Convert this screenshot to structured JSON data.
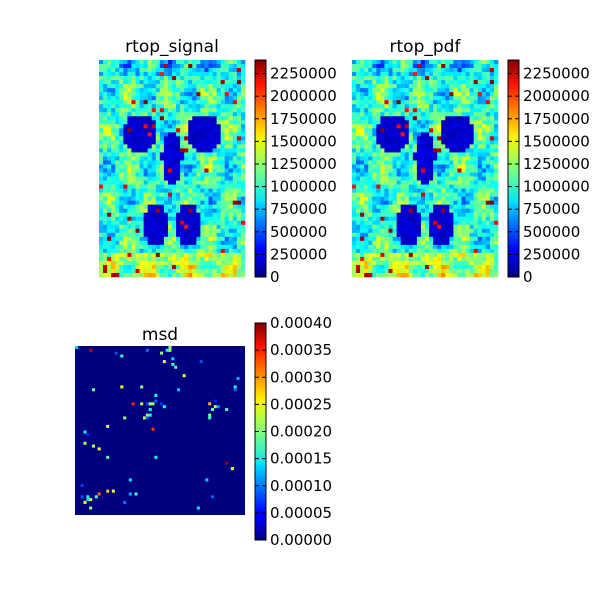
{
  "chart_data": [
    {
      "type": "heatmap",
      "title": "rtop_signal",
      "colormap": "jet",
      "colorbar": {
        "range": [
          0,
          2400000
        ],
        "ticks": [
          0,
          250000,
          500000,
          750000,
          1000000,
          1250000,
          1500000,
          1750000,
          2000000,
          2250000
        ],
        "tick_labels": [
          "0",
          "250000",
          "500000",
          "750000",
          "1000000",
          "1250000",
          "1500000",
          "1750000",
          "2000000",
          "2250000"
        ]
      },
      "axes_visible": false
    },
    {
      "type": "heatmap",
      "title": "rtop_pdf",
      "colormap": "jet",
      "colorbar": {
        "range": [
          0,
          2400000
        ],
        "ticks": [
          0,
          250000,
          500000,
          750000,
          1000000,
          1250000,
          1500000,
          1750000,
          2000000,
          2250000
        ],
        "tick_labels": [
          "0",
          "250000",
          "500000",
          "750000",
          "1000000",
          "1250000",
          "1500000",
          "1750000",
          "2000000",
          "2250000"
        ]
      },
      "axes_visible": false
    },
    {
      "type": "heatmap",
      "title": "msd",
      "colormap": "jet",
      "colorbar": {
        "range": [
          0,
          0.0004
        ],
        "ticks": [
          0,
          5e-05,
          0.0001,
          0.00015,
          0.0002,
          0.00025,
          0.0003,
          0.00035,
          0.0004
        ],
        "tick_labels": [
          "0.00000",
          "0.00005",
          "0.00010",
          "0.00015",
          "0.00020",
          "0.00025",
          "0.00030",
          "0.00035",
          "0.00040"
        ]
      },
      "axes_visible": false
    }
  ]
}
